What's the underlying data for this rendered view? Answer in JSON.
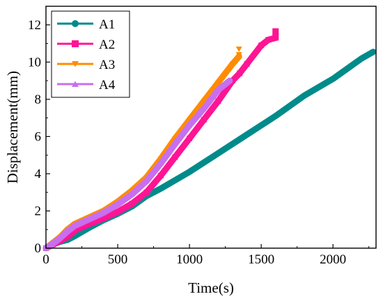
{
  "chart_data": {
    "type": "line",
    "xlabel": "Time(s)",
    "ylabel": "Displacement(mm)",
    "xlim": [
      0,
      2300
    ],
    "ylim": [
      0,
      13
    ],
    "xticks": [
      0,
      500,
      1000,
      1500,
      2000
    ],
    "yticks": [
      0,
      2,
      4,
      6,
      8,
      10,
      12
    ],
    "legend_position": "top-left",
    "grid": false,
    "series": [
      {
        "name": "A1",
        "color": "#008B8B",
        "marker": "circle",
        "x": [
          0,
          50,
          100,
          150,
          200,
          300,
          400,
          500,
          600,
          700,
          800,
          1000,
          1200,
          1400,
          1600,
          1800,
          2000,
          2200,
          2280
        ],
        "y": [
          0,
          0.2,
          0.35,
          0.45,
          0.65,
          1.1,
          1.5,
          1.85,
          2.25,
          2.8,
          3.2,
          4.1,
          5.1,
          6.1,
          7.1,
          8.2,
          9.1,
          10.2,
          10.55
        ]
      },
      {
        "name": "A2",
        "color": "#FF1493",
        "marker": "square",
        "x": [
          0,
          50,
          100,
          150,
          200,
          300,
          400,
          500,
          600,
          700,
          800,
          900,
          1000,
          1100,
          1200,
          1300,
          1350,
          1400,
          1500,
          1550,
          1600
        ],
        "y": [
          0,
          0.2,
          0.4,
          0.6,
          0.95,
          1.3,
          1.6,
          1.95,
          2.4,
          3.0,
          3.9,
          4.9,
          5.9,
          6.9,
          7.9,
          9.0,
          9.4,
          9.9,
          10.9,
          11.2,
          11.3
        ]
      },
      {
        "name": "A3",
        "color": "#FF8C00",
        "marker": "triangle-down",
        "x": [
          0,
          50,
          100,
          150,
          200,
          300,
          400,
          500,
          600,
          700,
          800,
          900,
          1000,
          1100,
          1200,
          1300,
          1345
        ],
        "y": [
          0,
          0.3,
          0.6,
          1.0,
          1.3,
          1.65,
          2.0,
          2.5,
          3.1,
          3.8,
          4.8,
          5.9,
          6.9,
          7.9,
          8.9,
          9.9,
          10.3
        ]
      },
      {
        "name": "A4",
        "color": "#C86EF0",
        "marker": "triangle-up",
        "x": [
          0,
          50,
          100,
          150,
          200,
          300,
          400,
          500,
          600,
          700,
          800,
          900,
          1000,
          1100,
          1200,
          1280
        ],
        "y": [
          0,
          0.25,
          0.55,
          0.9,
          1.2,
          1.55,
          1.9,
          2.35,
          2.9,
          3.6,
          4.55,
          5.6,
          6.6,
          7.5,
          8.5,
          9.0
        ]
      }
    ],
    "end_markers": [
      {
        "series": "A2",
        "x": 1600,
        "values": [
          11.35,
          11.65
        ]
      },
      {
        "series": "A3",
        "x": 1345,
        "values": [
          10.4,
          10.7
        ]
      }
    ]
  }
}
